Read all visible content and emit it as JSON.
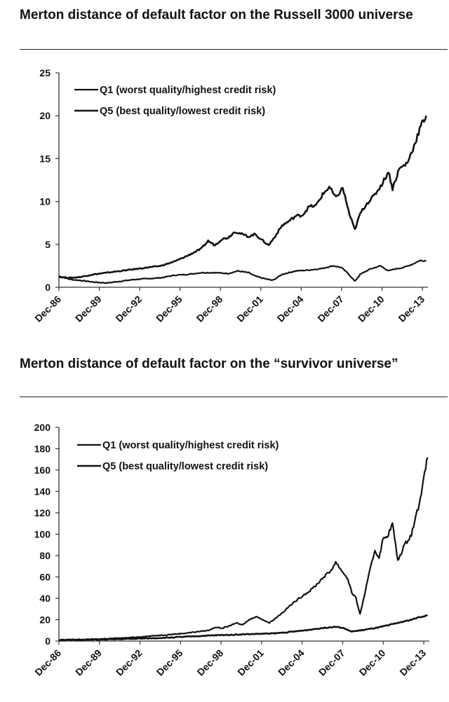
{
  "chart_data": [
    {
      "type": "line",
      "title": "Merton distance of default factor on the Russell 3000 universe",
      "ylim": [
        0,
        25
      ],
      "y_ticks": [
        0,
        5,
        10,
        15,
        20,
        25
      ],
      "x_tick_labels": [
        "Dec-86",
        "Dec-89",
        "Dec-92",
        "Dec-95",
        "Dec-98",
        "Dec-01",
        "Dec-04",
        "Dec-07",
        "Dec-10",
        "Dec-13"
      ],
      "xlim": [
        1986.917,
        2014.33
      ],
      "grid": false,
      "legend_position": "top-left",
      "series": [
        {
          "name": "Q1 (worst quality/highest credit risk)",
          "x": [
            1986.92,
            1987.8,
            1988.5,
            1989.5,
            1990.5,
            1991.5,
            1992.5,
            1993.5,
            1994.5,
            1995.5,
            1996.5,
            1997.5,
            1998.5,
            1999.5,
            2000.2,
            2001.0,
            2001.5,
            2002.2,
            2002.8,
            2003.5,
            2004.5,
            2005.5,
            2006.5,
            2007.3,
            2007.9,
            2008.4,
            2008.9,
            2009.3,
            2010.0,
            2010.8,
            2011.4,
            2011.8,
            2012.5,
            2013.2,
            2013.7,
            2014.2
          ],
          "values": [
            1.3,
            0.9,
            0.8,
            0.6,
            0.5,
            0.7,
            0.9,
            1.0,
            1.1,
            1.4,
            1.5,
            1.7,
            1.7,
            1.6,
            1.9,
            1.7,
            1.3,
            1.0,
            0.8,
            1.5,
            1.9,
            2.0,
            2.2,
            2.5,
            2.3,
            1.6,
            0.7,
            1.5,
            2.1,
            2.5,
            1.9,
            2.1,
            2.3,
            2.7,
            3.1,
            3.1
          ]
        },
        {
          "name": "Q5 (best quality/lowest credit risk)",
          "x": [
            1986.92,
            1987.8,
            1988.5,
            1989.5,
            1990.5,
            1991.5,
            1992.5,
            1993.5,
            1994.5,
            1995.5,
            1996.5,
            1997.5,
            1998.0,
            1998.5,
            1999.0,
            1999.5,
            2000.0,
            2000.5,
            2001.0,
            2001.5,
            2002.0,
            2002.5,
            2003.0,
            2003.5,
            2004.0,
            2004.5,
            2005.0,
            2005.5,
            2006.0,
            2006.5,
            2007.0,
            2007.5,
            2008.0,
            2008.5,
            2008.9,
            2009.3,
            2009.8,
            2010.3,
            2010.9,
            2011.4,
            2011.7,
            2012.2,
            2012.8,
            2013.3,
            2013.8,
            2014.2
          ],
          "values": [
            1.2,
            1.1,
            1.2,
            1.5,
            1.7,
            1.9,
            2.1,
            2.3,
            2.5,
            3.0,
            3.7,
            4.5,
            5.4,
            4.9,
            5.6,
            5.8,
            6.5,
            6.2,
            5.9,
            6.2,
            5.5,
            4.9,
            6.0,
            7.2,
            7.7,
            8.3,
            8.4,
            9.4,
            9.5,
            10.8,
            11.7,
            10.4,
            11.6,
            8.5,
            6.7,
            8.6,
            9.8,
            10.6,
            12.0,
            13.5,
            11.5,
            13.8,
            14.5,
            16.5,
            18.8,
            20.0
          ]
        }
      ]
    },
    {
      "type": "line",
      "title": "Merton distance of default factor on the “survivor universe”",
      "ylim": [
        0,
        200
      ],
      "y_ticks": [
        0,
        20,
        40,
        60,
        80,
        100,
        120,
        140,
        160,
        180,
        200
      ],
      "x_tick_labels": [
        "Dec-86",
        "Dec-89",
        "Dec-92",
        "Dec-95",
        "Dec-98",
        "Dec-01",
        "Dec-04",
        "Dec-07",
        "Dec-10",
        "Dec-13"
      ],
      "xlim": [
        1986.917,
        2014.33
      ],
      "grid": false,
      "legend_position": "top-left",
      "series": [
        {
          "name": "Q1 (worst quality/highest credit risk)",
          "x": [
            1986.92,
            1988.0,
            1989.0,
            1990.0,
            1991.0,
            1992.0,
            1993.0,
            1994.0,
            1995.0,
            1996.0,
            1997.0,
            1998.0,
            1998.5,
            1999.0,
            1999.5,
            2000.0,
            2000.5,
            2001.0,
            2001.5,
            2002.0,
            2002.5,
            2003.0,
            2003.5,
            2004.0,
            2004.5,
            2005.0,
            2005.5,
            2006.0,
            2006.5,
            2007.0,
            2007.4,
            2007.9,
            2008.3,
            2008.6,
            2008.9,
            2009.2,
            2009.6,
            2010.0,
            2010.3,
            2010.6,
            2010.9,
            2011.3,
            2011.6,
            2012.0,
            2012.5,
            2013.0,
            2013.5,
            2013.9,
            2014.2
          ],
          "values": [
            1,
            1.3,
            1.5,
            2,
            2.5,
            3,
            4,
            5,
            6,
            7,
            8.5,
            10,
            13,
            12,
            14,
            17,
            15,
            20,
            23,
            20,
            17,
            22,
            27,
            33,
            38,
            43,
            47,
            53,
            60,
            65,
            74,
            65,
            58,
            45,
            40,
            25,
            47,
            70,
            85,
            78,
            95,
            100,
            110,
            75,
            90,
            100,
            125,
            150,
            172
          ]
        },
        {
          "name": "Q5 (best quality/lowest credit risk)",
          "x": [
            1986.92,
            1988.0,
            1989.0,
            1990.0,
            1991.0,
            1992.0,
            1993.0,
            1994.0,
            1995.0,
            1996.0,
            1997.0,
            1998.0,
            1999.0,
            2000.0,
            2001.0,
            2002.0,
            2003.0,
            2004.0,
            2005.0,
            2006.0,
            2007.0,
            2007.5,
            2008.0,
            2008.5,
            2009.0,
            2009.5,
            2010.0,
            2010.5,
            2011.0,
            2011.5,
            2012.0,
            2012.5,
            2013.0,
            2013.5,
            2014.2
          ],
          "values": [
            1,
            1.1,
            1.2,
            1.4,
            1.6,
            2,
            2.3,
            2.7,
            3.2,
            3.8,
            4.5,
            5.1,
            5.6,
            6,
            6.5,
            6.8,
            7.3,
            8.5,
            9.8,
            11.5,
            13,
            13.5,
            12,
            9,
            9.5,
            10.5,
            11.5,
            12.5,
            14,
            15.5,
            17,
            18.5,
            20,
            22,
            24
          ]
        }
      ]
    }
  ],
  "colors": {
    "line": "#111111",
    "axis": "#333333"
  }
}
